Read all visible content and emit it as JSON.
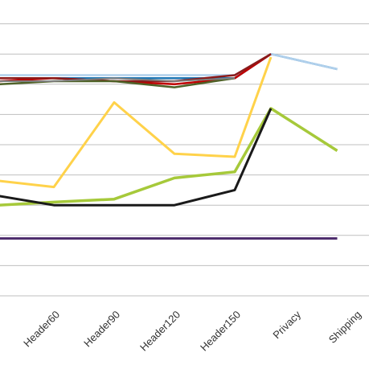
{
  "chart_data": {
    "type": "line",
    "categories": [
      "Header60",
      "Header90",
      "Header120",
      "Header150",
      "Privacy",
      "Shipping"
    ],
    "category_positions": [
      1,
      2,
      3,
      4,
      5,
      6
    ],
    "ylim": [
      0,
      100
    ],
    "grid": true,
    "legend": "none",
    "series": [
      {
        "color": "#1f77b4",
        "width": 2.5,
        "values": [
          {
            "x": 0.1,
            "y": 72
          },
          {
            "x": 1,
            "y": 72
          },
          {
            "x": 2,
            "y": 72
          },
          {
            "x": 3,
            "y": 72
          },
          {
            "x": 4,
            "y": 72
          },
          {
            "x": 4.6,
            "y": 80
          },
          {
            "x": 5.7,
            "y": 75
          }
        ]
      },
      {
        "color": "#b0d0ec",
        "width": 2.5,
        "values": [
          {
            "x": 0.1,
            "y": 73
          },
          {
            "x": 1,
            "y": 73
          },
          {
            "x": 2,
            "y": 73
          },
          {
            "x": 3,
            "y": 73
          },
          {
            "x": 4,
            "y": 73
          },
          {
            "x": 4.6,
            "y": 80
          },
          {
            "x": 5.7,
            "y": 75
          }
        ]
      },
      {
        "color": "#c00000",
        "width": 2.5,
        "values": [
          {
            "x": 0.1,
            "y": 71
          },
          {
            "x": 1,
            "y": 72
          },
          {
            "x": 2,
            "y": 71
          },
          {
            "x": 3,
            "y": 70
          },
          {
            "x": 4,
            "y": 72
          },
          {
            "x": 4.6,
            "y": 80
          }
        ]
      },
      {
        "color": "#8b1a1a",
        "width": 2.5,
        "values": [
          {
            "x": 0.1,
            "y": 72
          },
          {
            "x": 1,
            "y": 72
          },
          {
            "x": 2,
            "y": 71
          },
          {
            "x": 3,
            "y": 71
          },
          {
            "x": 4,
            "y": 73
          },
          {
            "x": 4.6,
            "y": 80
          }
        ]
      },
      {
        "color": "#4f6228",
        "width": 2.5,
        "values": [
          {
            "x": 0.1,
            "y": 70
          },
          {
            "x": 1,
            "y": 71
          },
          {
            "x": 2,
            "y": 71
          },
          {
            "x": 3,
            "y": 69
          },
          {
            "x": 4,
            "y": 72
          }
        ]
      },
      {
        "color": "#7f7f7f",
        "width": 2,
        "values": [
          {
            "x": 0.1,
            "y": 71
          },
          {
            "x": 1,
            "y": 71
          },
          {
            "x": 2,
            "y": 72
          },
          {
            "x": 3,
            "y": 71
          },
          {
            "x": 4,
            "y": 72
          }
        ]
      },
      {
        "color": "#ffd24a",
        "width": 3,
        "values": [
          {
            "x": 0.1,
            "y": 38
          },
          {
            "x": 1,
            "y": 36
          },
          {
            "x": 2,
            "y": 64
          },
          {
            "x": 3,
            "y": 47
          },
          {
            "x": 4,
            "y": 46
          },
          {
            "x": 4.6,
            "y": 79
          }
        ]
      },
      {
        "color": "#a6c93a",
        "width": 3.5,
        "values": [
          {
            "x": 0.1,
            "y": 30
          },
          {
            "x": 1,
            "y": 31
          },
          {
            "x": 2,
            "y": 32
          },
          {
            "x": 3,
            "y": 39
          },
          {
            "x": 4,
            "y": 41
          },
          {
            "x": 4.6,
            "y": 62
          },
          {
            "x": 5.7,
            "y": 48
          }
        ]
      },
      {
        "color": "#1a1a1a",
        "width": 3,
        "values": [
          {
            "x": 0.1,
            "y": 33
          },
          {
            "x": 1,
            "y": 30
          },
          {
            "x": 2,
            "y": 30
          },
          {
            "x": 3,
            "y": 30
          },
          {
            "x": 4,
            "y": 35
          },
          {
            "x": 4.6,
            "y": 62
          }
        ]
      },
      {
        "color": "#4b2a6b",
        "width": 3,
        "values": [
          {
            "x": 0.1,
            "y": 19
          },
          {
            "x": 5.7,
            "y": 19
          }
        ]
      }
    ]
  }
}
